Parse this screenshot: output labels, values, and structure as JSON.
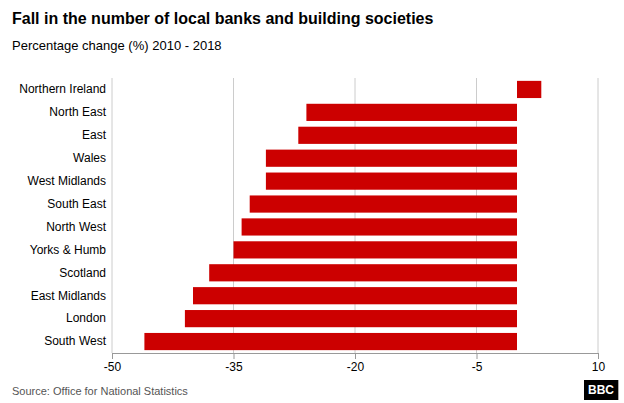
{
  "chart_data": {
    "type": "bar",
    "orientation": "horizontal",
    "title": "Fall in the number of local banks and building societies",
    "subtitle": "Percentage change (%) 2010 - 2018",
    "annotations": [
      "Source: Office for National Statistics",
      "BBC"
    ],
    "categories": [
      "South West",
      "London",
      "East Midlands",
      "Scotland",
      "Yorks & Humb",
      "North West",
      "South East",
      "West Midlands",
      "Wales",
      "East",
      "North East",
      "Northern Ireland"
    ],
    "values": [
      -46,
      -41,
      -40,
      -38,
      -35,
      -34,
      -33,
      -31,
      -31,
      -27,
      -26,
      3
    ],
    "color": "#cc0000",
    "xlim": [
      -50,
      10
    ],
    "xticks": [
      -50,
      -35,
      -20,
      -5,
      10
    ],
    "grid": true
  }
}
